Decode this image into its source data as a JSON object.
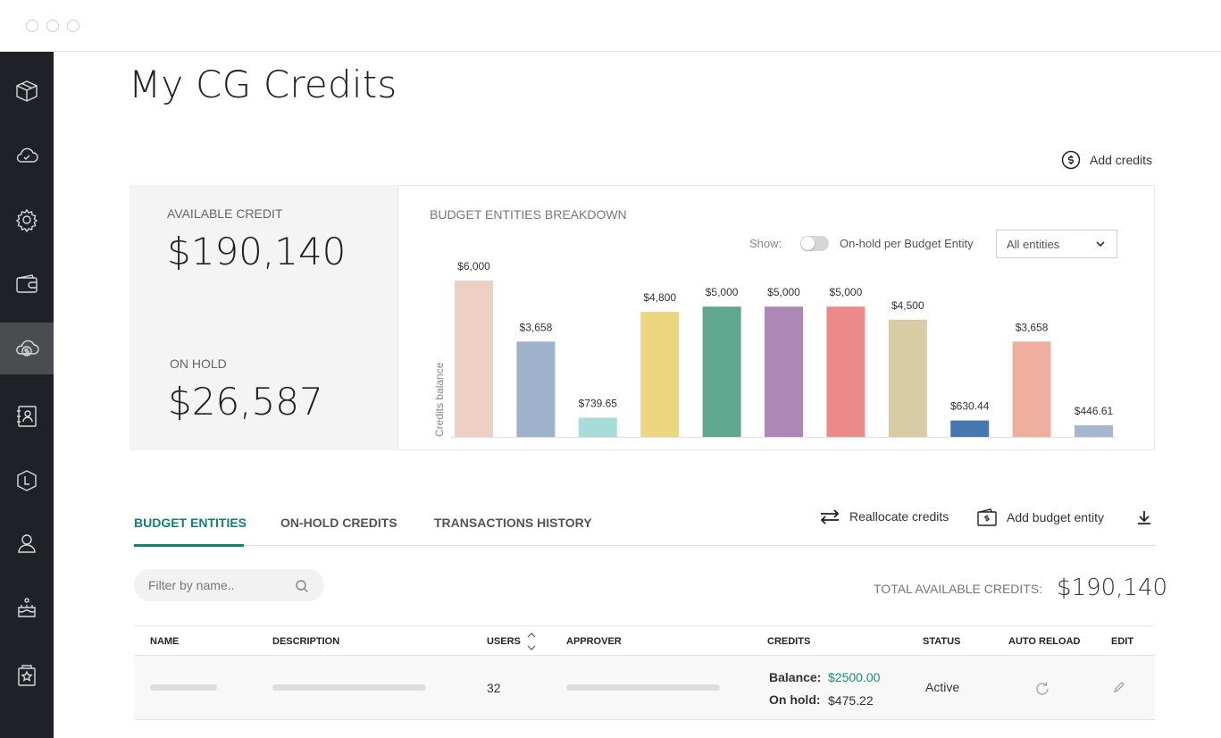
{
  "window": {
    "dots": 3
  },
  "sidebar": {
    "items": [
      {
        "icon": "box-icon",
        "active": false
      },
      {
        "icon": "cloud-check-icon",
        "active": false
      },
      {
        "icon": "gear-icon",
        "active": false
      },
      {
        "icon": "wallet-icon",
        "active": false
      },
      {
        "icon": "cloud-dollar-icon",
        "active": true
      },
      {
        "icon": "contacts-book-icon",
        "active": false
      },
      {
        "icon": "badge-icon",
        "active": false
      },
      {
        "icon": "user-icon",
        "active": false
      },
      {
        "icon": "cake-icon",
        "active": false
      },
      {
        "icon": "star-tag-icon",
        "active": false
      }
    ]
  },
  "page": {
    "title": "My CG Credits"
  },
  "header_actions": {
    "add_credits": "Add credits"
  },
  "summary": {
    "available_label": "AVAILABLE CREDIT",
    "available_value": "$190,140",
    "on_hold_label": "ON HOLD",
    "on_hold_value": "$26,587"
  },
  "breakdown": {
    "title": "BUDGET ENTITIES BREAKDOWN",
    "show_label": "Show:",
    "toggle_label": "On-hold per Budget Entity",
    "toggle_on": false,
    "select_value": "All entities"
  },
  "chart_data": {
    "type": "bar",
    "title": "BUDGET ENTITIES BREAKDOWN",
    "ylabel": "Credits balance",
    "xlabel": "",
    "ylim": [
      0,
      6000
    ],
    "grid": false,
    "categories": [
      "",
      "",
      "",
      "",
      "",
      "",
      "",
      "",
      "",
      "",
      ""
    ],
    "values": [
      6000,
      3658,
      739.65,
      4800,
      5000,
      5000,
      5000,
      4500,
      630.44,
      3658,
      446.61
    ],
    "labels": [
      "$6,000",
      "$3,658",
      "$739.65",
      "$4,800",
      "$5,000",
      "$5,000",
      "$5,000",
      "$4,500",
      "$630.44",
      "$3,658",
      "$446.61"
    ],
    "colors": [
      "#edcfc4",
      "#9eb2cc",
      "#a8dcd9",
      "#ecd67f",
      "#5fa78f",
      "#ad88b6",
      "#ec8a8a",
      "#d9cca4",
      "#4677b0",
      "#efaf9f",
      "#a5b6cf"
    ]
  },
  "tabs": [
    {
      "label": "BUDGET ENTITIES",
      "active": true
    },
    {
      "label": "ON-HOLD CREDITS",
      "active": false
    },
    {
      "label": "TRANSACTIONS HISTORY",
      "active": false
    }
  ],
  "actions": {
    "reallocate": "Reallocate credits",
    "add_entity": "Add budget entity"
  },
  "filter": {
    "placeholder": "Filter by name.."
  },
  "totals": {
    "label": "TOTAL AVAILABLE CREDITS:",
    "value": "$190,140"
  },
  "table": {
    "columns": [
      "NAME",
      "DESCRIPTION",
      "USERS",
      "APPROVER",
      "CREDITS",
      "STATUS",
      "AUTO RELOAD",
      "EDIT"
    ],
    "rows": [
      {
        "users": "32",
        "balance_label": "Balance:",
        "balance_value": "$2500.00",
        "on_hold_label": "On hold:",
        "on_hold_value": "$475.22",
        "status": "Active"
      }
    ]
  }
}
